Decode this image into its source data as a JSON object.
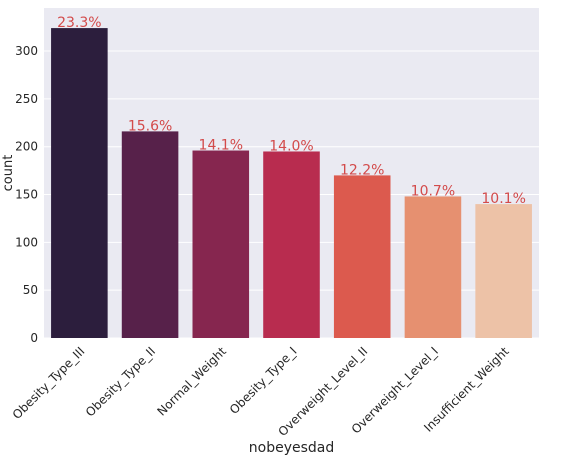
{
  "chart_data": {
    "type": "bar",
    "title": "",
    "xlabel": "nobeyesdad",
    "ylabel": "count",
    "ylim": [
      0,
      345
    ],
    "yticks": [
      0,
      50,
      100,
      150,
      200,
      250,
      300
    ],
    "grid": true,
    "categories": [
      "Obesity_Type_III",
      "Obesity_Type_II",
      "Normal_Weight",
      "Obesity_Type_I",
      "Overweight_Level_II",
      "Overweight_Level_I",
      "Insufficient_Weight"
    ],
    "values": [
      324,
      216,
      196,
      195,
      170,
      148,
      140
    ],
    "bar_labels": [
      "23.3%",
      "15.6%",
      "14.1%",
      "14.0%",
      "12.2%",
      "10.7%",
      "10.1%"
    ],
    "bar_colors": [
      "#2c1e3d",
      "#57214a",
      "#86264f",
      "#b82c4f",
      "#dc5a4e",
      "#e69070",
      "#edc2a7"
    ],
    "label_color": "#d34b4b",
    "xlabel_color": "#d34b4b",
    "plot_background": "#eaeaf2",
    "grid_color": "#ffffff"
  }
}
